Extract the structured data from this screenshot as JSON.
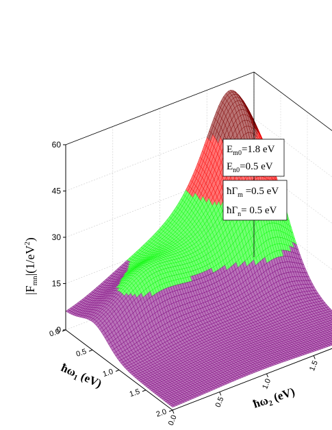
{
  "chart_data": {
    "type": "surface-3d",
    "z_label": "|F_mn|(1/eV²)",
    "z_label_parts": {
      "main": "|F",
      "sub": "mn",
      "rest": "|(1/eV",
      "sup": "2",
      "close": ")"
    },
    "x_label_parts": {
      "main": "ħω",
      "sub": "1",
      "rest": " (eV)"
    },
    "y_label_parts": {
      "main": "ħω",
      "sub": "2",
      "rest": " (eV)"
    },
    "z_ticks": [
      "0",
      "15",
      "30",
      "45",
      "60"
    ],
    "x_ticks": [
      "0.0",
      "0.5",
      "1.0",
      "1.5",
      "2.0"
    ],
    "y_ticks": [
      "0.0",
      "0.5",
      "1.0",
      "1.5"
    ],
    "zlim": [
      0,
      60
    ],
    "xlim": [
      0,
      2
    ],
    "ylim": [
      0,
      2
    ],
    "peak": {
      "x": 0.0,
      "y": 1.8,
      "z": 54
    },
    "color_bands": [
      {
        "from": 0,
        "to": 15,
        "color": "#800080"
      },
      {
        "from": 15,
        "to": 30,
        "color": "#00ff00"
      },
      {
        "from": 30,
        "to": 45,
        "color": "#ff0000"
      },
      {
        "from": 45,
        "to": 60,
        "color": "#800000"
      }
    ],
    "annotation_box_1": [
      {
        "main": "E",
        "sub": "m0",
        "rest": "=1.8 eV"
      },
      {
        "main": "E",
        "sub": "n0",
        "rest": "=0.5 eV"
      }
    ],
    "annotation_box_2": [
      {
        "main": "ħΓ",
        "sub": "m",
        "rest": " =0.5 eV"
      },
      {
        "main": "ħΓ",
        "sub": "n",
        "rest": "= 0.5 eV"
      }
    ],
    "grid": true
  }
}
